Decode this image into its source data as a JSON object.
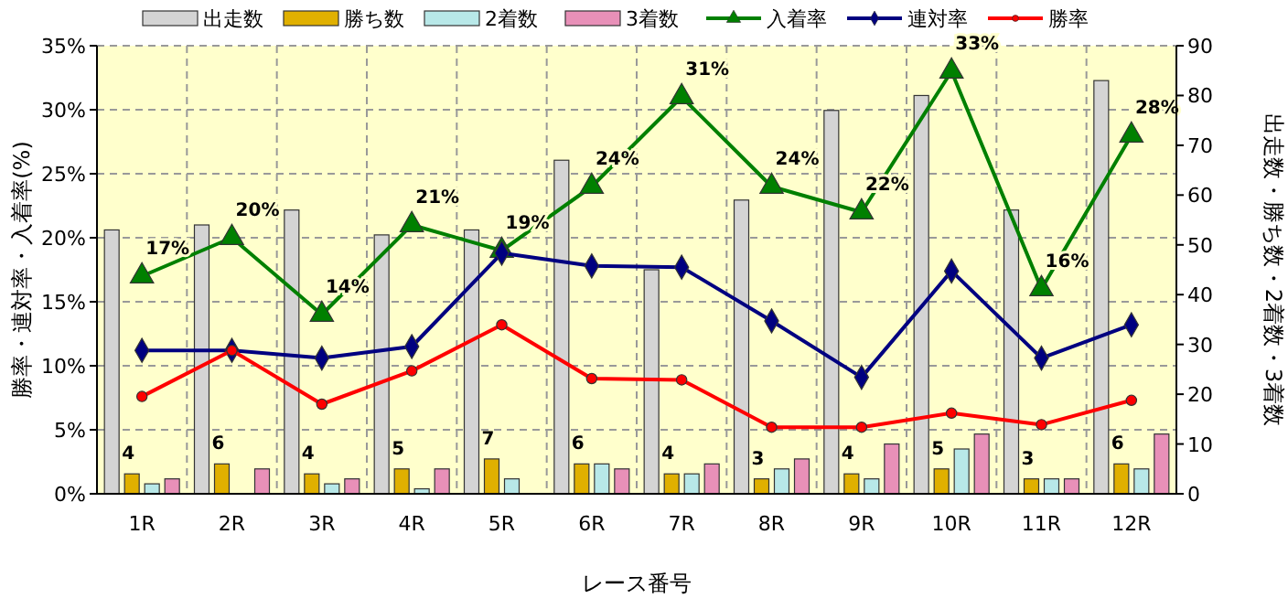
{
  "chart_data": {
    "type": "bar",
    "xlabel": "レース番号",
    "ylabel": "勝率・連対率・入着率(%)",
    "y2label": "出走数・勝ち数・2着数・3着数",
    "categories": [
      "1R",
      "2R",
      "3R",
      "4R",
      "5R",
      "6R",
      "7R",
      "8R",
      "9R",
      "10R",
      "11R",
      "12R"
    ],
    "series": [
      {
        "name": "出走数",
        "axis": "y2",
        "color": "#d4d4d4",
        "values": [
          53,
          54,
          57,
          52,
          53,
          67,
          45,
          59,
          77,
          80,
          57,
          83
        ]
      },
      {
        "name": "勝ち数",
        "axis": "y2",
        "color": "#e0b000",
        "values": [
          4,
          6,
          4,
          5,
          7,
          6,
          4,
          3,
          4,
          5,
          3,
          6
        ],
        "value_labels": [
          "4",
          "6",
          "4",
          "5",
          "7",
          "6",
          "4",
          "3",
          "4",
          "5",
          "3",
          "6"
        ]
      },
      {
        "name": "2着数",
        "axis": "y2",
        "color": "#b8e8e8",
        "values": [
          2,
          0,
          2,
          1,
          3,
          6,
          4,
          5,
          3,
          9,
          3,
          5
        ]
      },
      {
        "name": "3着数",
        "axis": "y2",
        "color": "#e890b8",
        "values": [
          3,
          5,
          3,
          5,
          0,
          5,
          6,
          7,
          10,
          12,
          3,
          12
        ]
      },
      {
        "name": "入着率",
        "type": "line",
        "marker": "triangle",
        "color": "#008000",
        "values": [
          17,
          20,
          14,
          21,
          19,
          24,
          31,
          24,
          22,
          33,
          16,
          28
        ],
        "value_labels": [
          "17%",
          "20%",
          "14%",
          "21%",
          "19%",
          "24%",
          "31%",
          "24%",
          "22%",
          "33%",
          "16%",
          "28%"
        ]
      },
      {
        "name": "連対率",
        "type": "line",
        "marker": "diamond",
        "color": "#000080",
        "values": [
          11.2,
          11.2,
          10.6,
          11.5,
          18.8,
          17.8,
          17.7,
          13.5,
          9.1,
          17.4,
          10.6,
          13.2
        ]
      },
      {
        "name": "勝率",
        "type": "line",
        "marker": "circle",
        "color": "#ff0000",
        "values": [
          7.6,
          11.2,
          7.0,
          9.6,
          13.2,
          9.0,
          8.9,
          5.2,
          5.2,
          6.3,
          5.4,
          7.3
        ]
      }
    ],
    "ylim": [
      0,
      35
    ],
    "yticks": [
      {
        "value": 0,
        "label": "0%"
      },
      {
        "value": 5,
        "label": "5%"
      },
      {
        "value": 10,
        "label": "10%"
      },
      {
        "value": 15,
        "label": "15%"
      },
      {
        "value": 20,
        "label": "20%"
      },
      {
        "value": 25,
        "label": "25%"
      },
      {
        "value": 30,
        "label": "30%"
      },
      {
        "value": 35,
        "label": "35%"
      }
    ],
    "y2lim": [
      0,
      90
    ],
    "y2ticks": [
      0,
      10,
      20,
      30,
      40,
      50,
      60,
      70,
      80,
      90
    ],
    "grid": true,
    "legend": "top"
  }
}
